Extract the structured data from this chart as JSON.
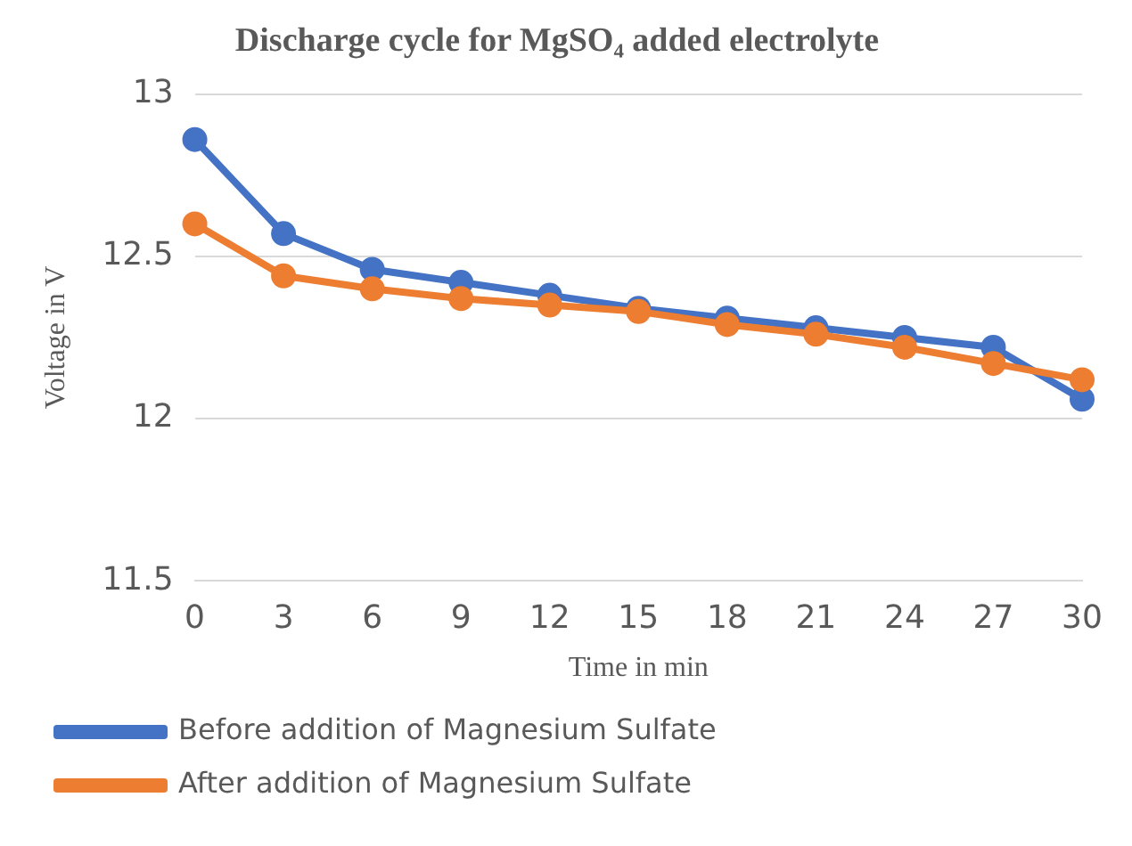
{
  "chart_data": {
    "type": "line",
    "title": "Discharge cycle for MgSO₄ added electrolyte",
    "xlabel": "Time in min",
    "ylabel": "Voltage in V",
    "categories": [
      "0",
      "3",
      "6",
      "9",
      "12",
      "15",
      "18",
      "21",
      "24",
      "27",
      "30"
    ],
    "series": [
      {
        "name": "Before addition of Magnesium Sulfate",
        "color": "#4472c4",
        "values": [
          12.86,
          12.57,
          12.46,
          12.42,
          12.38,
          12.34,
          12.31,
          12.28,
          12.25,
          12.22,
          12.06
        ]
      },
      {
        "name": "After addition of Magnesium Sulfate",
        "color": "#ed7d31",
        "values": [
          12.6,
          12.44,
          12.4,
          12.37,
          12.35,
          12.33,
          12.29,
          12.26,
          12.22,
          12.17,
          12.12
        ]
      }
    ],
    "ylim": [
      11.5,
      13
    ],
    "yticks": [
      11.5,
      12,
      12.5,
      13
    ],
    "grid": "y",
    "legend": "bottom",
    "marker": "circle",
    "line_style": "solid"
  }
}
